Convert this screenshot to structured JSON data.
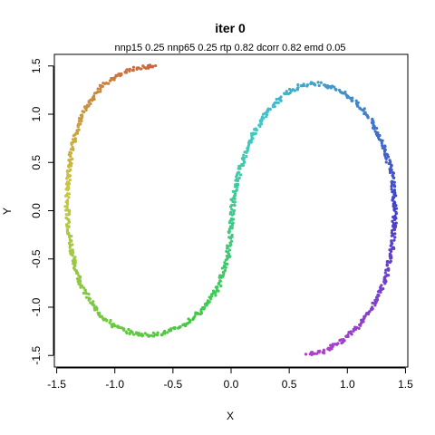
{
  "chart_data": {
    "type": "scatter",
    "title": "iter 0",
    "subtitle": "nnp15 0.25 nnp65 0.25 rtp 0.82 dcorr 0.82 emd 0.05",
    "xlabel": "X",
    "ylabel": "Y",
    "xlim": [
      -1.52,
      1.52
    ],
    "ylim": [
      -1.62,
      1.62
    ],
    "xticks": [
      -1.5,
      -1.0,
      -0.5,
      0.0,
      0.5,
      1.0,
      1.5
    ],
    "xtick_labels": [
      "-1.5",
      "-1.0",
      "-0.5",
      "0.0",
      "0.5",
      "1.0",
      "1.5"
    ],
    "yticks": [
      -1.5,
      -1.0,
      -0.5,
      0.0,
      0.5,
      1.0,
      1.5
    ],
    "ytick_labels": [
      "-1.5",
      "-1.0",
      "-0.5",
      "0.0",
      "0.5",
      "1.0",
      "1.5"
    ],
    "grid": false,
    "legend": "none",
    "series": [
      {
        "color_scale": "rainbow",
        "points": [
          {
            "x": -0.65,
            "y": 1.5
          },
          {
            "x": -0.8,
            "y": 1.48
          },
          {
            "x": -0.95,
            "y": 1.42
          },
          {
            "x": -1.1,
            "y": 1.3
          },
          {
            "x": -1.22,
            "y": 1.12
          },
          {
            "x": -1.31,
            "y": 0.9
          },
          {
            "x": -1.37,
            "y": 0.65
          },
          {
            "x": -1.4,
            "y": 0.35
          },
          {
            "x": -1.41,
            "y": 0.05
          },
          {
            "x": -1.39,
            "y": -0.25
          },
          {
            "x": -1.35,
            "y": -0.55
          },
          {
            "x": -1.27,
            "y": -0.82
          },
          {
            "x": -1.15,
            "y": -1.05
          },
          {
            "x": -1.0,
            "y": -1.2
          },
          {
            "x": -0.85,
            "y": -1.27
          },
          {
            "x": -0.7,
            "y": -1.29
          },
          {
            "x": -0.55,
            "y": -1.26
          },
          {
            "x": -0.4,
            "y": -1.18
          },
          {
            "x": -0.25,
            "y": -1.03
          },
          {
            "x": -0.12,
            "y": -0.82
          },
          {
            "x": -0.03,
            "y": -0.5
          },
          {
            "x": 0.0,
            "y": -0.18
          },
          {
            "x": 0.02,
            "y": 0.15
          },
          {
            "x": 0.08,
            "y": 0.45
          },
          {
            "x": 0.17,
            "y": 0.75
          },
          {
            "x": 0.3,
            "y": 1.0
          },
          {
            "x": 0.45,
            "y": 1.2
          },
          {
            "x": 0.6,
            "y": 1.3
          },
          {
            "x": 0.75,
            "y": 1.32
          },
          {
            "x": 0.9,
            "y": 1.27
          },
          {
            "x": 1.05,
            "y": 1.15
          },
          {
            "x": 1.2,
            "y": 0.95
          },
          {
            "x": 1.32,
            "y": 0.65
          },
          {
            "x": 1.39,
            "y": 0.35
          },
          {
            "x": 1.41,
            "y": 0.0
          },
          {
            "x": 1.39,
            "y": -0.35
          },
          {
            "x": 1.33,
            "y": -0.7
          },
          {
            "x": 1.22,
            "y": -1.0
          },
          {
            "x": 1.08,
            "y": -1.22
          },
          {
            "x": 0.92,
            "y": -1.38
          },
          {
            "x": 0.78,
            "y": -1.46
          },
          {
            "x": 0.66,
            "y": -1.48
          }
        ]
      }
    ]
  }
}
